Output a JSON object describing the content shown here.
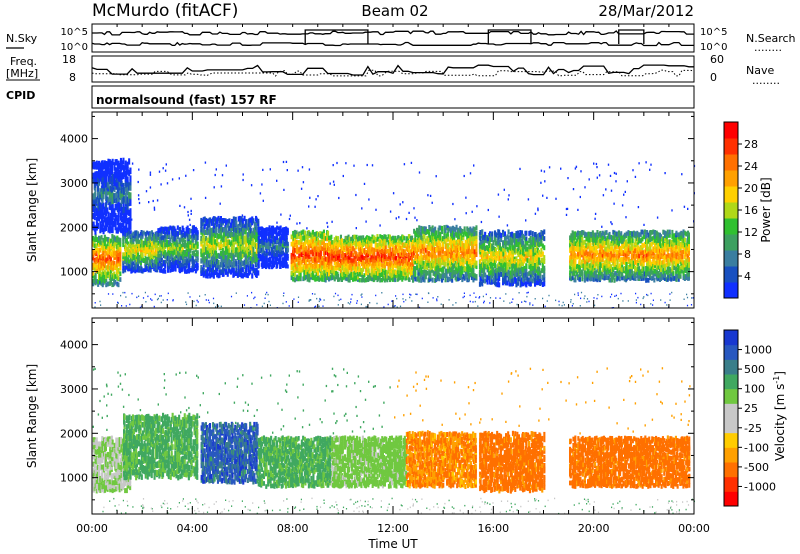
{
  "header": {
    "station": "McMurdo (fitACF)",
    "beam": "Beam 02",
    "date": "28/Mar/2012"
  },
  "strips": {
    "nsky_label": "N.Sky",
    "nsearch_label": "N.Search",
    "freq_label_1": "Freq.",
    "freq_label_2": "[MHz]",
    "nave_label": "Nave",
    "cpid_label": "CPID",
    "cpid_text": "normalsound (fast) 157 RF",
    "noise_ticks": [
      "10^5",
      "10^0"
    ],
    "freq_ticks": [
      "18",
      "8"
    ],
    "nave_ticks": [
      "60",
      "0"
    ],
    "dots": "........"
  },
  "colorbars": {
    "power": {
      "label": "Power [dB]",
      "ticks": [
        "4",
        "8",
        "12",
        "16",
        "20",
        "24",
        "28"
      ],
      "colors": [
        "#1030ff",
        "#1850c0",
        "#3a7ea0",
        "#3da060",
        "#30c030",
        "#b0d818",
        "#ffd000",
        "#ffa000",
        "#ff7000",
        "#ff3000",
        "#ff0000"
      ]
    },
    "velocity": {
      "label": "Velocity [m s^-1]",
      "ticks": [
        "1000",
        "500",
        "100",
        "25",
        "-25",
        "-100",
        "-500",
        "-1000"
      ],
      "colors": [
        "#1838d0",
        "#2858c0",
        "#3a7e8a",
        "#40a860",
        "#70c840",
        "#c8c8c8",
        "#c8c8c8",
        "#ffcc00",
        "#ffa000",
        "#ff7000",
        "#ff3000",
        "#ff0000"
      ]
    }
  },
  "axes": {
    "ylabel": "Slant Range [km]",
    "xlabel": "Time UT",
    "yticks": [
      "1000",
      "2000",
      "3000",
      "4000"
    ],
    "xticks": [
      "00:00",
      "04:00",
      "08:00",
      "12:00",
      "16:00",
      "20:00",
      "00:00"
    ]
  },
  "chart_data": [
    {
      "type": "heatmap",
      "title": "",
      "variable": "Power",
      "units": "dB",
      "xlabel": "Time UT",
      "ylabel": "Slant Range [km]",
      "xlim_hours": [
        0,
        24
      ],
      "ylim_km": [
        180,
        4600
      ],
      "colorbar_range": [
        0,
        30
      ],
      "echo_regions": [
        {
          "t_start": 0.0,
          "t_end": 1.1,
          "r_low": 700,
          "r_high": 1800,
          "value": 24
        },
        {
          "t_start": 0.0,
          "t_end": 1.5,
          "r_low": 1900,
          "r_high": 3500,
          "value": 8
        },
        {
          "t_start": 1.2,
          "t_end": 2.6,
          "r_low": 1000,
          "r_high": 1900,
          "value": 18
        },
        {
          "t_start": 2.6,
          "t_end": 4.2,
          "r_low": 1000,
          "r_high": 2000,
          "value": 14
        },
        {
          "t_start": 4.3,
          "t_end": 6.6,
          "r_low": 900,
          "r_high": 2200,
          "value": 16
        },
        {
          "t_start": 6.6,
          "t_end": 7.8,
          "r_low": 1100,
          "r_high": 2000,
          "value": 8
        },
        {
          "t_start": 7.9,
          "t_end": 9.4,
          "r_low": 800,
          "r_high": 1900,
          "value": 26
        },
        {
          "t_start": 9.4,
          "t_end": 12.8,
          "r_low": 800,
          "r_high": 1800,
          "value": 26
        },
        {
          "t_start": 12.8,
          "t_end": 15.3,
          "r_low": 800,
          "r_high": 2000,
          "value": 22
        },
        {
          "t_start": 15.4,
          "t_end": 18.0,
          "r_low": 700,
          "r_high": 1900,
          "value": 18
        },
        {
          "t_start": 19.0,
          "t_end": 23.8,
          "r_low": 800,
          "r_high": 1900,
          "value": 22
        }
      ]
    },
    {
      "type": "heatmap",
      "title": "",
      "variable": "Velocity",
      "units": "m s^-1",
      "xlabel": "Time UT",
      "ylabel": "Slant Range [km]",
      "xlim_hours": [
        0,
        24
      ],
      "ylim_km": [
        180,
        4600
      ],
      "colorbar_range": [
        -1000,
        1000
      ],
      "echo_regions": [
        {
          "t_start": 0.0,
          "t_end": 1.5,
          "r_low": 700,
          "r_high": 1900,
          "value": 100
        },
        {
          "t_start": 1.2,
          "t_end": 4.2,
          "r_low": 1000,
          "r_high": 2400,
          "value": 300
        },
        {
          "t_start": 4.3,
          "t_end": 6.6,
          "r_low": 900,
          "r_high": 2200,
          "value": 800
        },
        {
          "t_start": 6.6,
          "t_end": 9.5,
          "r_low": 800,
          "r_high": 1900,
          "value": 300
        },
        {
          "t_start": 9.5,
          "t_end": 12.5,
          "r_low": 800,
          "r_high": 1900,
          "value": 150
        },
        {
          "t_start": 12.5,
          "t_end": 15.3,
          "r_low": 800,
          "r_high": 2000,
          "value": -100
        },
        {
          "t_start": 15.4,
          "t_end": 18.0,
          "r_low": 700,
          "r_high": 2000,
          "value": -150
        },
        {
          "t_start": 19.0,
          "t_end": 23.8,
          "r_low": 800,
          "r_high": 1900,
          "value": -150
        }
      ]
    }
  ]
}
